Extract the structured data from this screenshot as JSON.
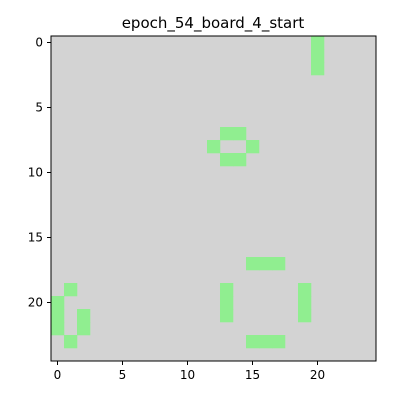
{
  "title": "epoch_54_board_4_start",
  "colors": {
    "background": "#d3d3d3",
    "alive": "#90ee90",
    "axis": "#000000"
  },
  "board": {
    "rows": 25,
    "cols": 25,
    "live_cells": [
      [
        0,
        20
      ],
      [
        1,
        20
      ],
      [
        2,
        20
      ],
      [
        7,
        13
      ],
      [
        7,
        14
      ],
      [
        8,
        12
      ],
      [
        8,
        15
      ],
      [
        9,
        13
      ],
      [
        9,
        14
      ],
      [
        17,
        15
      ],
      [
        17,
        16
      ],
      [
        17,
        17
      ],
      [
        19,
        1
      ],
      [
        19,
        13
      ],
      [
        19,
        19
      ],
      [
        20,
        0
      ],
      [
        20,
        13
      ],
      [
        20,
        19
      ],
      [
        21,
        0
      ],
      [
        21,
        2
      ],
      [
        21,
        13
      ],
      [
        21,
        19
      ],
      [
        22,
        0
      ],
      [
        22,
        2
      ],
      [
        23,
        1
      ],
      [
        23,
        15
      ],
      [
        23,
        16
      ],
      [
        23,
        17
      ]
    ]
  },
  "axes": {
    "x_ticks": [
      "0",
      "5",
      "10",
      "15",
      "20"
    ],
    "y_ticks": [
      "0",
      "5",
      "10",
      "15",
      "20"
    ]
  }
}
